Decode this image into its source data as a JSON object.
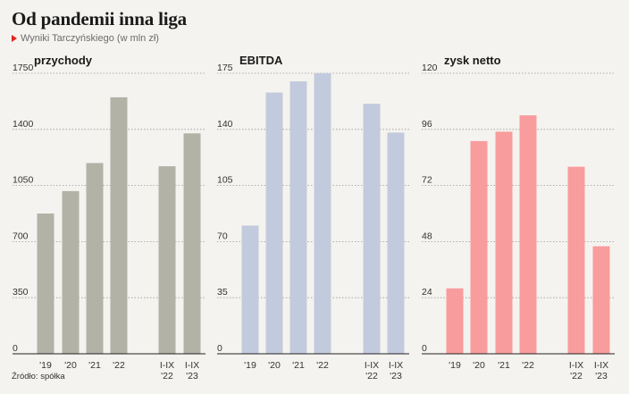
{
  "header": {
    "title": "Od pandemii inna liga",
    "subtitle": "Wyniki Tarczyńskiego (w mln zł)",
    "source": "Źródło: spółka"
  },
  "chart_data": [
    {
      "type": "bar",
      "title": "przychody",
      "categories": [
        "'19",
        "'20",
        "'21",
        "'22",
        "I-IX\n'22",
        "I-IX\n'23"
      ],
      "values": [
        875,
        1015,
        1190,
        1600,
        1170,
        1375
      ],
      "ylim": [
        0,
        1750
      ],
      "yticks": [
        0,
        350,
        700,
        1050,
        1400,
        1750
      ],
      "color": "#b3b2a7",
      "grid": true
    },
    {
      "type": "bar",
      "title": "EBITDA",
      "categories": [
        "'19",
        "'20",
        "'21",
        "'22",
        "I-IX\n'22",
        "I-IX\n'23"
      ],
      "values": [
        80,
        163,
        170,
        175,
        156,
        138
      ],
      "ylim": [
        0,
        175
      ],
      "yticks": [
        0,
        35,
        70,
        105,
        140,
        175
      ],
      "color": "#c2cbdd",
      "grid": true
    },
    {
      "type": "bar",
      "title": "zysk netto",
      "categories": [
        "'19",
        "'20",
        "'21",
        "'22",
        "I-IX\n'22",
        "I-IX\n'23"
      ],
      "values": [
        28,
        91,
        95,
        102,
        80,
        46
      ],
      "ylim": [
        0,
        120
      ],
      "yticks": [
        0,
        24,
        48,
        72,
        96,
        120
      ],
      "color": "#f99c9d",
      "grid": true
    }
  ]
}
